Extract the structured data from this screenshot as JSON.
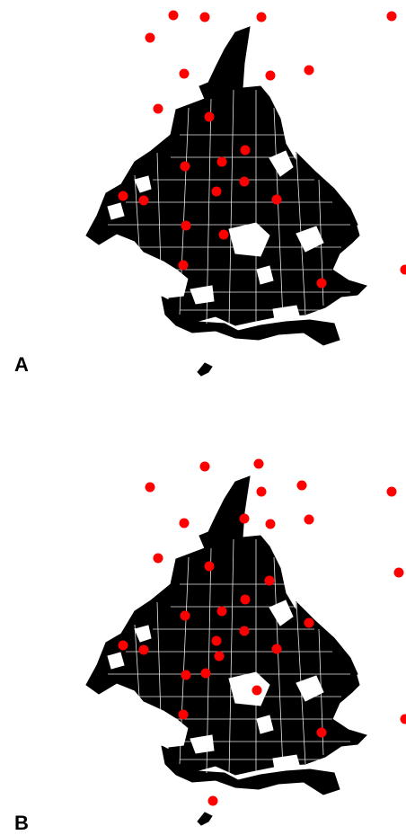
{
  "panels": [
    {
      "label": "A",
      "point_color": "#ff0000",
      "point_count": 30
    },
    {
      "label": "B",
      "point_color": "#ff0000",
      "point_count": 38
    }
  ],
  "map": {
    "outline_color": "#000000",
    "background_color": "#ffffff"
  }
}
